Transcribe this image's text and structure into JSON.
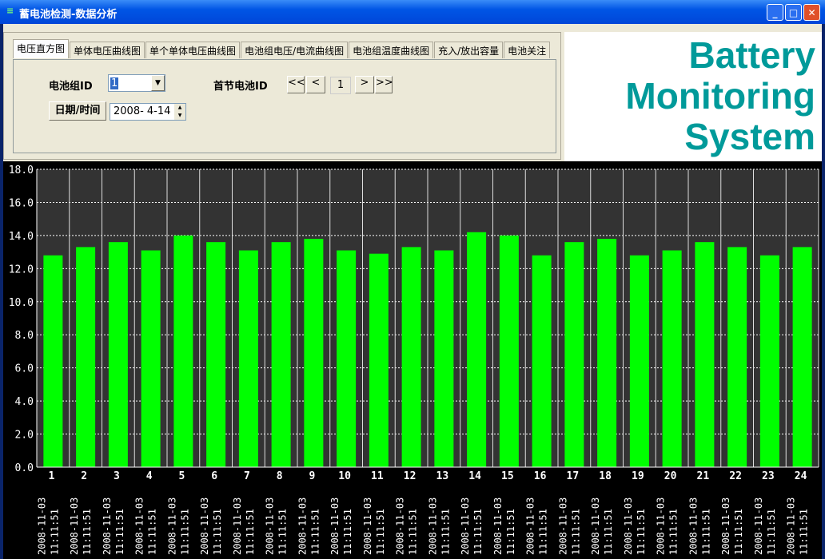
{
  "window": {
    "title": "蓄电池检测-数据分析",
    "minimize": "_",
    "maximize": "□",
    "close": "✕"
  },
  "tabs": [
    "电压直方图",
    "单体电压曲线图",
    "单个单体电压曲线图",
    "电池组电压/电流曲线图",
    "电池组温度曲线图",
    "充入/放出容量",
    "电池关注"
  ],
  "controls": {
    "group_label": "电池组ID",
    "group_value": "1",
    "first_cell_label": "首节电池ID",
    "first_btn": "<<",
    "prev_btn": "<",
    "cell_value": "1",
    "next_btn": ">",
    "last_btn": ">>",
    "date_button": "日期/时间",
    "date_value": "2008- 4-14"
  },
  "logo": [
    "Battery",
    "Monitoring",
    "System"
  ],
  "colors": {
    "bar": "#00ff00",
    "plot_bg": "#333333",
    "logo": "#009a9a"
  },
  "chart_data": {
    "type": "bar",
    "ylim": [
      0,
      18
    ],
    "yticks": [
      "0.0",
      "2.0",
      "4.0",
      "6.0",
      "8.0",
      "10.0",
      "12.0",
      "14.0",
      "16.0",
      "18.0"
    ],
    "categories": [
      "1",
      "2",
      "3",
      "4",
      "5",
      "6",
      "7",
      "8",
      "9",
      "10",
      "11",
      "12",
      "13",
      "14",
      "15",
      "16",
      "17",
      "18",
      "19",
      "20",
      "21",
      "22",
      "23",
      "24"
    ],
    "timestamps": "2008-11-03 11:11:51",
    "values": [
      12.8,
      13.3,
      13.6,
      13.1,
      14.0,
      13.6,
      13.1,
      13.6,
      13.8,
      13.1,
      12.9,
      13.3,
      13.1,
      14.2,
      14.0,
      12.8,
      13.6,
      13.8,
      12.8,
      13.1,
      13.6,
      13.3,
      12.8,
      13.3
    ],
    "grid": true
  }
}
